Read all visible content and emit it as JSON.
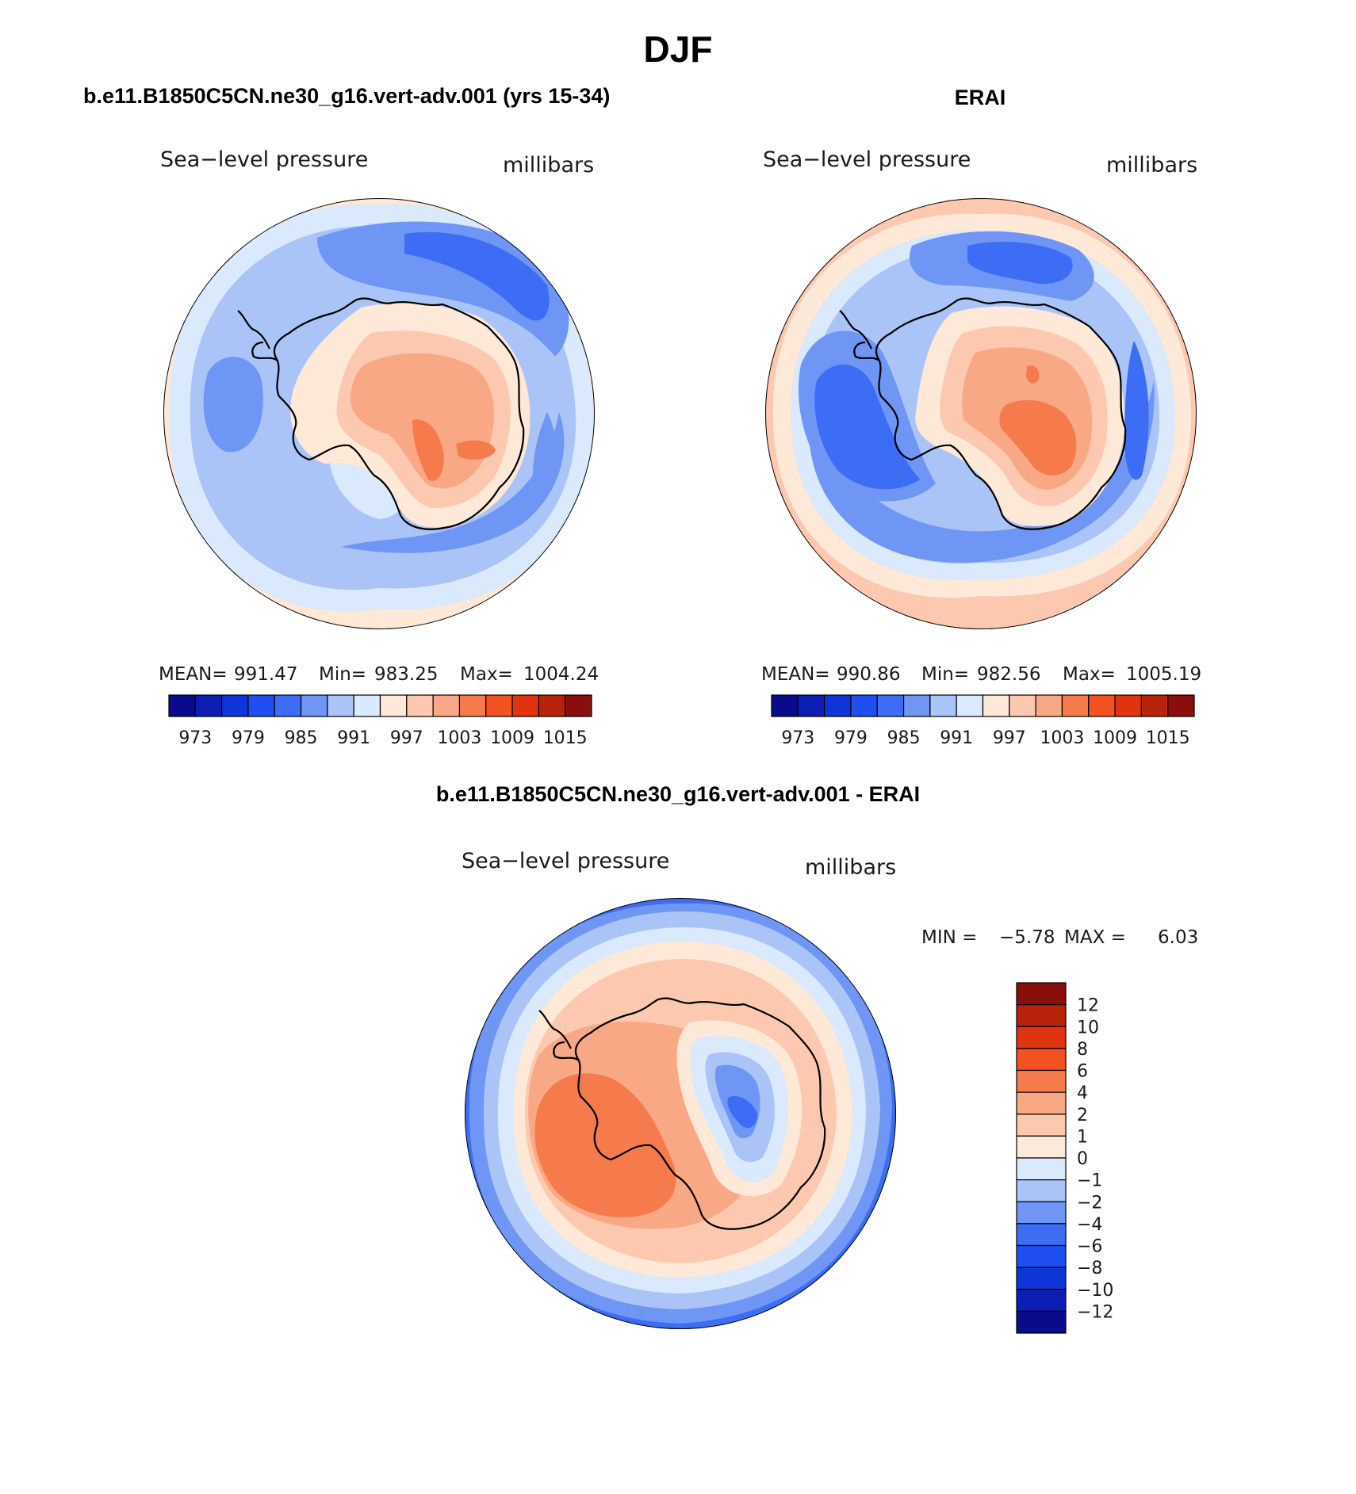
{
  "figure": {
    "season": "DJF",
    "model_title": "b.e11.B1850C5CN.ne30_g16.vert-adv.001 (yrs 15-34)",
    "obs_title": "ERAI",
    "diff_title": "b.e11.B1850C5CN.ne30_g16.vert-adv.001 - ERAI"
  },
  "colors": {
    "palette": [
      "#0a0a8c",
      "#0d1eb4",
      "#0f35d8",
      "#1f4ff0",
      "#3e6df5",
      "#6f96f5",
      "#aac4f8",
      "#dae9fb",
      "#fee8d8",
      "#fcc8b0",
      "#f9a886",
      "#f67b4c",
      "#f3511f",
      "#e03410",
      "#b8210a",
      "#8a0f0a"
    ],
    "land_outline": "#000000"
  },
  "chart_data": [
    {
      "type": "heatmap",
      "name": "model",
      "projection": "south-polar-stereographic",
      "left_label": "Sea−level pressure",
      "right_label": "millibars",
      "stats": {
        "mean_label": "MEAN=",
        "mean": "991.47",
        "min_label": "Min=",
        "min": "983.25",
        "max_label": "Max=",
        "max": "1004.24"
      },
      "colorbar": {
        "orientation": "horizontal",
        "levels": [
          973,
          976,
          979,
          982,
          985,
          988,
          991,
          994,
          997,
          1000,
          1003,
          1006,
          1009,
          1012,
          1015
        ],
        "tick_labels": [
          "973",
          "979",
          "985",
          "991",
          "997",
          "1003",
          "1009",
          "1015"
        ]
      }
    },
    {
      "type": "heatmap",
      "name": "obs",
      "projection": "south-polar-stereographic",
      "left_label": "Sea−level pressure",
      "right_label": "millibars",
      "stats": {
        "mean_label": "MEAN=",
        "mean": "990.86",
        "min_label": "Min=",
        "min": "982.56",
        "max_label": "Max=",
        "max": "1005.19"
      },
      "colorbar": {
        "orientation": "horizontal",
        "levels": [
          973,
          976,
          979,
          982,
          985,
          988,
          991,
          994,
          997,
          1000,
          1003,
          1006,
          1009,
          1012,
          1015
        ],
        "tick_labels": [
          "973",
          "979",
          "985",
          "991",
          "997",
          "1003",
          "1009",
          "1015"
        ]
      }
    },
    {
      "type": "heatmap",
      "name": "difference",
      "projection": "south-polar-stereographic",
      "left_label": "Sea−level pressure",
      "right_label": "millibars",
      "stats": {
        "min_label": "MIN =",
        "min": "−5.78",
        "max_label": "MAX =",
        "max": "6.03"
      },
      "colorbar": {
        "orientation": "vertical",
        "levels": [
          -12,
          -10,
          -8,
          -6,
          -4,
          -2,
          -1,
          0,
          1,
          2,
          4,
          6,
          8,
          10,
          12
        ],
        "tick_labels": [
          "12",
          "10",
          "8",
          "6",
          "4",
          "2",
          "1",
          "0",
          "−1",
          "−2",
          "−4",
          "−6",
          "−8",
          "−10",
          "−12"
        ]
      }
    }
  ]
}
